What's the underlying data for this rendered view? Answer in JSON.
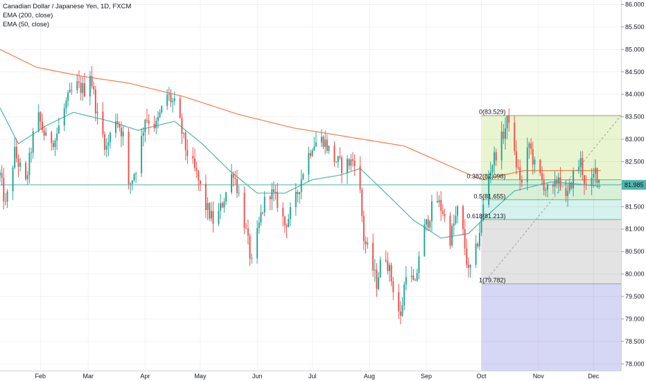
{
  "legend": {
    "symbol_line": "Canadian Dollar / Japanese Yen, 1D, FXCM",
    "ema200_label": "EMA (200, close)",
    "ema50_label": "EMA (50, close)"
  },
  "colors": {
    "up": "#26a69a",
    "down": "#ef5350",
    "ema200": "#f57c4f",
    "ema50": "#4db6ac",
    "price_line": "#4db6ac",
    "fib_0_382_fill": "#e8f5d0",
    "fib_0_5_fill": "#d8f0d8",
    "fib_0_618_fill": "#d5f2ee",
    "fib_lower_fill": "#e3e3e3",
    "fib_ext_fill": "#d6d6f5"
  },
  "chart_data": {
    "type": "candlestick",
    "title": "Canadian Dollar / Japanese Yen, 1D, FXCM",
    "ylim": [
      77.85,
      86.1
    ],
    "y_ticks": [
      "86.000",
      "85.500",
      "85.000",
      "84.500",
      "84.000",
      "83.500",
      "83.000",
      "82.500",
      "82.000",
      "81.500",
      "81.000",
      "80.500",
      "80.000",
      "79.500",
      "79.000",
      "78.500",
      "78.000"
    ],
    "x_ticks": [
      {
        "label": "Feb",
        "day": 22
      },
      {
        "label": "Mar",
        "day": 48
      },
      {
        "label": "Apr",
        "day": 79
      },
      {
        "label": "May",
        "day": 109
      },
      {
        "label": "Jun",
        "day": 140
      },
      {
        "label": "Jul",
        "day": 170
      },
      {
        "label": "Aug",
        "day": 201
      },
      {
        "label": "Sep",
        "day": 232
      },
      {
        "label": "Oct",
        "day": 262
      },
      {
        "label": "Nov",
        "day": 293
      },
      {
        "label": "Dec",
        "day": 323
      }
    ],
    "x_range_days": [
      0,
      338
    ],
    "current_price": "81.985",
    "current_price_value": 81.985,
    "keypoints": [
      {
        "day": 0,
        "price": 82.2
      },
      {
        "day": 3,
        "price": 81.5
      },
      {
        "day": 8,
        "price": 82.7
      },
      {
        "day": 14,
        "price": 82.0
      },
      {
        "day": 20,
        "price": 83.6
      },
      {
        "day": 25,
        "price": 83.0
      },
      {
        "day": 30,
        "price": 83.0
      },
      {
        "day": 36,
        "price": 83.8
      },
      {
        "day": 41,
        "price": 84.2
      },
      {
        "day": 46,
        "price": 84.1
      },
      {
        "day": 49,
        "price": 84.5
      },
      {
        "day": 53,
        "price": 83.5
      },
      {
        "day": 58,
        "price": 82.8
      },
      {
        "day": 63,
        "price": 83.5
      },
      {
        "day": 67,
        "price": 83.1
      },
      {
        "day": 70,
        "price": 81.9
      },
      {
        "day": 75,
        "price": 82.5
      },
      {
        "day": 79,
        "price": 83.5
      },
      {
        "day": 85,
        "price": 83.3
      },
      {
        "day": 91,
        "price": 84.0
      },
      {
        "day": 96,
        "price": 83.7
      },
      {
        "day": 101,
        "price": 82.8
      },
      {
        "day": 107,
        "price": 82.2
      },
      {
        "day": 112,
        "price": 81.5
      },
      {
        "day": 117,
        "price": 81.1
      },
      {
        "day": 122,
        "price": 81.7
      },
      {
        "day": 127,
        "price": 82.3
      },
      {
        "day": 132,
        "price": 81.4
      },
      {
        "day": 137,
        "price": 80.2
      },
      {
        "day": 142,
        "price": 81.3
      },
      {
        "day": 146,
        "price": 81.9
      },
      {
        "day": 151,
        "price": 81.6
      },
      {
        "day": 155,
        "price": 81.1
      },
      {
        "day": 160,
        "price": 81.5
      },
      {
        "day": 165,
        "price": 82.3
      },
      {
        "day": 170,
        "price": 82.9
      },
      {
        "day": 176,
        "price": 83.0
      },
      {
        "day": 181,
        "price": 82.6
      },
      {
        "day": 186,
        "price": 82.4
      },
      {
        "day": 191,
        "price": 82.5
      },
      {
        "day": 194,
        "price": 82.6
      },
      {
        "day": 196,
        "price": 81.8
      },
      {
        "day": 198,
        "price": 80.8
      },
      {
        "day": 201,
        "price": 80.4
      },
      {
        "day": 205,
        "price": 79.8
      },
      {
        "day": 209,
        "price": 80.6
      },
      {
        "day": 214,
        "price": 79.7
      },
      {
        "day": 218,
        "price": 79.0
      },
      {
        "day": 221,
        "price": 80.1
      },
      {
        "day": 226,
        "price": 79.7
      },
      {
        "day": 229,
        "price": 80.8
      },
      {
        "day": 233,
        "price": 81.2
      },
      {
        "day": 237,
        "price": 81.7
      },
      {
        "day": 241,
        "price": 81.4
      },
      {
        "day": 245,
        "price": 80.8
      },
      {
        "day": 249,
        "price": 81.4
      },
      {
        "day": 252,
        "price": 80.9
      },
      {
        "day": 255,
        "price": 80.0
      },
      {
        "day": 259,
        "price": 80.5
      },
      {
        "day": 262,
        "price": 81.2
      },
      {
        "day": 265,
        "price": 82.1
      },
      {
        "day": 269,
        "price": 82.6
      },
      {
        "day": 273,
        "price": 83.0
      },
      {
        "day": 277,
        "price": 83.5
      },
      {
        "day": 280,
        "price": 82.6
      },
      {
        "day": 284,
        "price": 82.0
      },
      {
        "day": 288,
        "price": 82.9
      },
      {
        "day": 291,
        "price": 82.4
      },
      {
        "day": 296,
        "price": 82.0
      },
      {
        "day": 300,
        "price": 81.7
      },
      {
        "day": 304,
        "price": 82.2
      },
      {
        "day": 308,
        "price": 81.6
      },
      {
        "day": 312,
        "price": 82.2
      },
      {
        "day": 316,
        "price": 82.5
      },
      {
        "day": 320,
        "price": 81.7
      },
      {
        "day": 324,
        "price": 82.3
      },
      {
        "day": 327,
        "price": 82.0
      }
    ],
    "ema200_keypoints": [
      {
        "day": 0,
        "price": 85.0
      },
      {
        "day": 20,
        "price": 84.6
      },
      {
        "day": 45,
        "price": 84.4
      },
      {
        "day": 70,
        "price": 84.25
      },
      {
        "day": 100,
        "price": 83.95
      },
      {
        "day": 130,
        "price": 83.55
      },
      {
        "day": 160,
        "price": 83.25
      },
      {
        "day": 190,
        "price": 83.05
      },
      {
        "day": 220,
        "price": 82.85
      },
      {
        "day": 245,
        "price": 82.4
      },
      {
        "day": 262,
        "price": 82.1
      },
      {
        "day": 285,
        "price": 82.3
      },
      {
        "day": 310,
        "price": 82.3
      },
      {
        "day": 327,
        "price": 82.3
      }
    ],
    "ema50_keypoints": [
      {
        "day": 0,
        "price": 83.7
      },
      {
        "day": 10,
        "price": 82.9
      },
      {
        "day": 25,
        "price": 83.3
      },
      {
        "day": 40,
        "price": 83.6
      },
      {
        "day": 60,
        "price": 83.4
      },
      {
        "day": 75,
        "price": 83.2
      },
      {
        "day": 95,
        "price": 83.4
      },
      {
        "day": 110,
        "price": 82.9
      },
      {
        "day": 125,
        "price": 82.3
      },
      {
        "day": 140,
        "price": 81.8
      },
      {
        "day": 155,
        "price": 81.8
      },
      {
        "day": 170,
        "price": 82.1
      },
      {
        "day": 185,
        "price": 82.2
      },
      {
        "day": 196,
        "price": 82.35
      },
      {
        "day": 210,
        "price": 81.8
      },
      {
        "day": 225,
        "price": 81.2
      },
      {
        "day": 240,
        "price": 80.8
      },
      {
        "day": 255,
        "price": 80.9
      },
      {
        "day": 265,
        "price": 81.3
      },
      {
        "day": 280,
        "price": 81.85
      },
      {
        "day": 300,
        "price": 82.05
      },
      {
        "day": 315,
        "price": 82.0
      },
      {
        "day": 327,
        "price": 81.95
      }
    ],
    "fibonacci": {
      "start_day": 262,
      "end_day": 338,
      "trend_line": {
        "from": {
          "day": 263,
          "price": 79.782
        },
        "to": {
          "day": 338,
          "price": 83.529
        }
      },
      "levels": [
        {
          "ratio": "0",
          "price": 83.529,
          "label": "0(83.529)",
          "label_color": "#555555"
        },
        {
          "ratio": "0.382",
          "price": 82.098,
          "label": "0.382(82.098)",
          "label_color": "#4caf50"
        },
        {
          "ratio": "0.5",
          "price": 81.655,
          "label": "0.5(81.655)",
          "label_color": "#4caf50"
        },
        {
          "ratio": "0.618",
          "price": 81.213,
          "label": "0.618(81.213)",
          "label_color": "#26a69a"
        },
        {
          "ratio": "1",
          "price": 79.782,
          "label": "1(79.782)",
          "label_color": "#555555"
        }
      ],
      "extension_bottom": 77.85
    }
  }
}
